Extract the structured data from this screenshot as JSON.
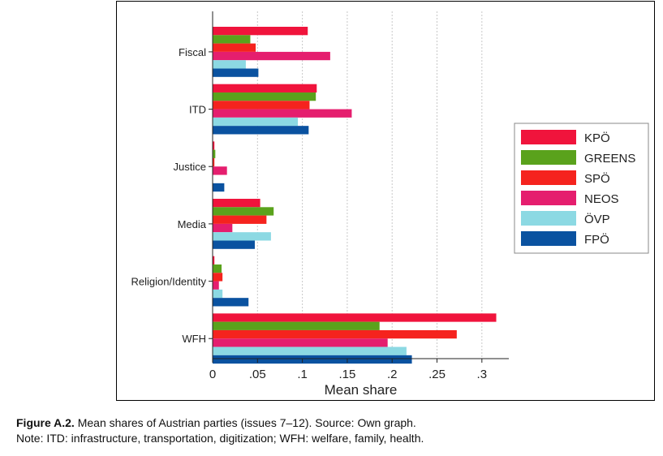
{
  "chart_data": {
    "type": "bar",
    "orientation": "horizontal",
    "categories": [
      "Fiscal",
      "ITD",
      "Justice",
      "Media",
      "Religion/Identity",
      "WFH"
    ],
    "series": [
      {
        "name": "KPÖ",
        "color": "#f0143c",
        "values": [
          0.106,
          0.116,
          0.002,
          0.053,
          0.002,
          0.316
        ]
      },
      {
        "name": "GREENS",
        "color": "#5aa21c",
        "values": [
          0.042,
          0.115,
          0.003,
          0.068,
          0.01,
          0.186
        ]
      },
      {
        "name": "SPÖ",
        "color": "#f5231e",
        "values": [
          0.048,
          0.108,
          0.002,
          0.06,
          0.011,
          0.272
        ]
      },
      {
        "name": "NEOS",
        "color": "#e51e6e",
        "values": [
          0.131,
          0.155,
          0.016,
          0.022,
          0.007,
          0.195
        ]
      },
      {
        "name": "ÖVP",
        "color": "#8cd9e3",
        "values": [
          0.037,
          0.095,
          0.0,
          0.065,
          0.011,
          0.216
        ]
      },
      {
        "name": "FPÖ",
        "color": "#0a52a0",
        "values": [
          0.051,
          0.107,
          0.013,
          0.047,
          0.04,
          0.222
        ]
      }
    ],
    "xlabel": "Mean share",
    "ylabel": "",
    "xlim": [
      0,
      0.33
    ],
    "xticks": [
      0,
      0.05,
      0.1,
      0.15,
      0.2,
      0.25,
      0.3
    ],
    "xtick_labels": [
      "0",
      ".05",
      ".1",
      ".15",
      ".2",
      ".25",
      ".3"
    ],
    "grid": "vertical dashed",
    "legend_position": "right"
  },
  "caption": {
    "figure_label": "Figure A.2.",
    "line1": "Mean shares of Austrian parties (issues 7–12). Source: Own graph.",
    "line2": "Note: ITD: infrastructure, transportation, digitization; WFH: welfare, family, health."
  }
}
